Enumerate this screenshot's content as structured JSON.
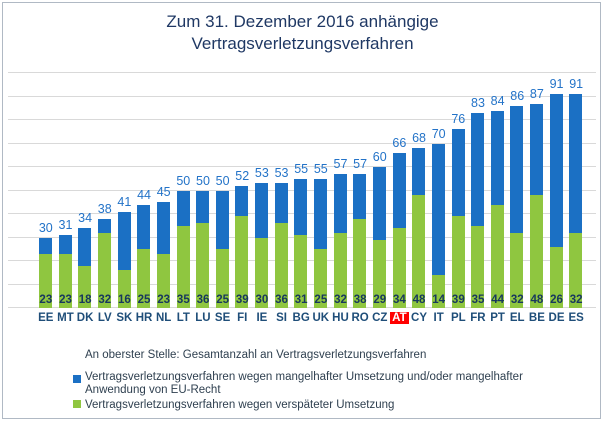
{
  "chart_data": {
    "type": "bar",
    "stacked": true,
    "title": "Zum 31. Dezember 2016 anhängige Vertragsverletzungsverfahren",
    "categories": [
      "EE",
      "MT",
      "DK",
      "LV",
      "SK",
      "HR",
      "NL",
      "LT",
      "LU",
      "SE",
      "FI",
      "IE",
      "SI",
      "BG",
      "UK",
      "HU",
      "RO",
      "CZ",
      "AT",
      "CY",
      "IT",
      "PL",
      "FR",
      "PT",
      "EL",
      "BE",
      "DE",
      "ES"
    ],
    "totals": [
      30,
      31,
      34,
      38,
      41,
      44,
      45,
      50,
      50,
      50,
      52,
      53,
      53,
      55,
      55,
      57,
      57,
      60,
      66,
      68,
      70,
      76,
      83,
      84,
      86,
      87,
      91,
      91
    ],
    "series": [
      {
        "name": "Vertragsverletzungsverfahren wegen mangelhafter Umsetzung und/oder mangelhafter Anwendung von EU-Recht",
        "color": "#1b70c4",
        "values": [
          7,
          8,
          16,
          6,
          25,
          19,
          22,
          15,
          14,
          25,
          13,
          23,
          17,
          24,
          30,
          25,
          19,
          31,
          32,
          20,
          56,
          37,
          48,
          40,
          54,
          39,
          65,
          59
        ]
      },
      {
        "name": "Vertragsverletzungsverfahren wegen verspäteter Umsetzung",
        "color": "#8fc640",
        "values": [
          23,
          23,
          18,
          32,
          16,
          25,
          23,
          35,
          36,
          25,
          39,
          30,
          36,
          31,
          25,
          32,
          38,
          29,
          34,
          48,
          14,
          39,
          35,
          44,
          32,
          48,
          26,
          32
        ]
      }
    ],
    "totals_note": "An oberster Stelle: Gesamtanzahl an Vertragsverletzungsverfahren",
    "highlight_category": "AT",
    "highlight_color": "#ff0000",
    "ylim": [
      0,
      100
    ],
    "grid_step": 10,
    "grid": true,
    "legend_position": "bottom",
    "colors": {
      "title": "#1f3864",
      "total_label": "#2373c8",
      "value_label": "#17375d",
      "axis_label": "#1f4e79",
      "gridline": "#d9d9d9"
    }
  }
}
